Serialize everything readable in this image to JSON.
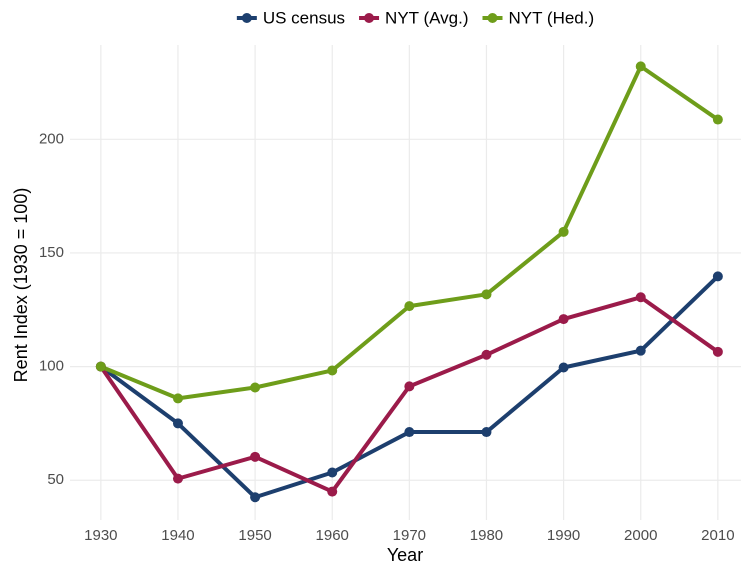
{
  "chart_data": {
    "type": "line",
    "x_label": "Year",
    "y_label": "Rent Index (1930 = 100)",
    "x": [
      1930,
      1940,
      1950,
      1960,
      1970,
      1980,
      1990,
      2000,
      2010
    ],
    "series": [
      {
        "name": "US census",
        "color": "#1d3f6e",
        "values": [
          100,
          75,
          42.5,
          53.4,
          71.2,
          71.2,
          99.6,
          107,
          139.7
        ]
      },
      {
        "name": "NYT (Avg.)",
        "color": "#9b1b4a",
        "values": [
          100,
          50.7,
          60.3,
          45,
          91.3,
          105.2,
          120.9,
          130.5,
          106.5
        ]
      },
      {
        "name": "NYT (Hed.)",
        "color": "#6e9d1a",
        "values": [
          100,
          86,
          90.8,
          98.3,
          126.6,
          131.8,
          159.3,
          232.1,
          208.7
        ]
      }
    ],
    "xlim": [
      1926,
      2013
    ],
    "ylim": [
      32.5,
      241.5
    ],
    "xticks": [
      1930,
      1940,
      1950,
      1960,
      1970,
      1980,
      1990,
      2000,
      2010
    ],
    "yticks": [
      50,
      100,
      150,
      200
    ],
    "grid": true,
    "legend": "top"
  }
}
